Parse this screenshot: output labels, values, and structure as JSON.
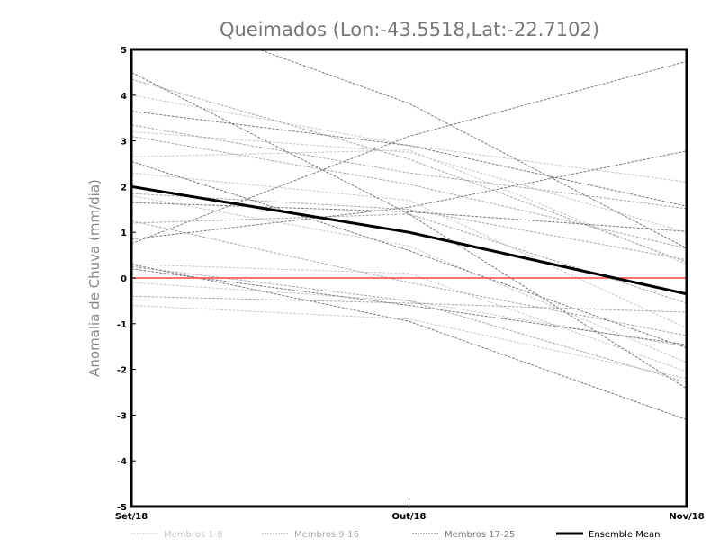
{
  "chart_data": {
    "type": "line",
    "title": "Queimados (Lon:-43.5518,Lat:-22.7102)",
    "xlabel": "",
    "ylabel": "Anomalia de Chuva (mm/dia)",
    "categories": [
      "Set/18",
      "Out/18",
      "Nov/18"
    ],
    "ylim": [
      -5,
      5
    ],
    "yticks": [
      "-5",
      "-4",
      "-3",
      "-2",
      "-1",
      "0",
      "1",
      "2",
      "3",
      "4",
      "5"
    ],
    "grid": false,
    "legend_position": "bottom",
    "zero_line_color": "#ff4444",
    "groups": [
      {
        "name": "Membros 1-8",
        "color": "#c8c8c8"
      },
      {
        "name": "Membros 9-16",
        "color": "#a8a8a8"
      },
      {
        "name": "Membros 17-25",
        "color": "#7a7a7a"
      },
      {
        "name": "Ensemble Mean",
        "color": "#000000"
      }
    ],
    "series": [
      {
        "name": "Membro 1",
        "group": 0,
        "values": [
          4.0,
          2.9,
          2.1
        ]
      },
      {
        "name": "Membro 2",
        "group": 0,
        "values": [
          3.2,
          2.75,
          1.0
        ]
      },
      {
        "name": "Membro 3",
        "group": 0,
        "values": [
          2.65,
          2.8,
          0.3
        ]
      },
      {
        "name": "Membro 4",
        "group": 0,
        "values": [
          2.3,
          1.7,
          -1.1
        ]
      },
      {
        "name": "Membro 5",
        "group": 0,
        "values": [
          1.8,
          0.7,
          -1.85
        ]
      },
      {
        "name": "Membro 6",
        "group": 0,
        "values": [
          0.3,
          0.1,
          -2.05
        ]
      },
      {
        "name": "Membro 7",
        "group": 0,
        "values": [
          -0.1,
          -0.5,
          -1.5
        ]
      },
      {
        "name": "Membro 8",
        "group": 0,
        "values": [
          -0.6,
          -0.9,
          -2.2
        ]
      },
      {
        "name": "Membro 9",
        "group": 1,
        "values": [
          4.35,
          2.6,
          0.35
        ]
      },
      {
        "name": "Membro 10",
        "group": 1,
        "values": [
          3.1,
          2.05,
          0.65
        ]
      },
      {
        "name": "Membro 11",
        "group": 1,
        "values": [
          3.35,
          2.3,
          1.52
        ]
      },
      {
        "name": "Membro 12",
        "group": 1,
        "values": [
          1.85,
          1.5,
          0.4
        ]
      },
      {
        "name": "Membro 13",
        "group": 1,
        "values": [
          1.2,
          1.4,
          -0.55
        ]
      },
      {
        "name": "Membro 14",
        "group": 1,
        "values": [
          0.25,
          -0.5,
          -2.28
        ]
      },
      {
        "name": "Membro 15",
        "group": 1,
        "values": [
          -0.4,
          -0.55,
          -0.75
        ]
      },
      {
        "name": "Membro 16",
        "group": 1,
        "values": [
          1.25,
          -0.1,
          -1.26
        ]
      },
      {
        "name": "Membro 17",
        "group": 2,
        "values": [
          6.0,
          3.82,
          0.65
        ]
      },
      {
        "name": "Membro 18",
        "group": 2,
        "values": [
          0.75,
          3.1,
          4.74
        ]
      },
      {
        "name": "Membro 19",
        "group": 2,
        "values": [
          0.85,
          1.55,
          2.78
        ]
      },
      {
        "name": "Membro 20",
        "group": 2,
        "values": [
          3.65,
          2.9,
          1.57
        ]
      },
      {
        "name": "Membro 21",
        "group": 2,
        "values": [
          2.55,
          0.6,
          -1.53
        ]
      },
      {
        "name": "Membro 22",
        "group": 2,
        "values": [
          4.5,
          1.4,
          -2.42
        ]
      },
      {
        "name": "Membro 23",
        "group": 2,
        "values": [
          1.65,
          1.45,
          1.02
        ]
      },
      {
        "name": "Membro 24",
        "group": 2,
        "values": [
          0.3,
          -0.95,
          -3.1
        ]
      },
      {
        "name": "Membro 25",
        "group": 2,
        "values": [
          0.2,
          -0.6,
          -1.46
        ]
      },
      {
        "name": "Ensemble Mean",
        "group": 3,
        "values": [
          2.0,
          1.0,
          -0.35
        ]
      }
    ]
  }
}
